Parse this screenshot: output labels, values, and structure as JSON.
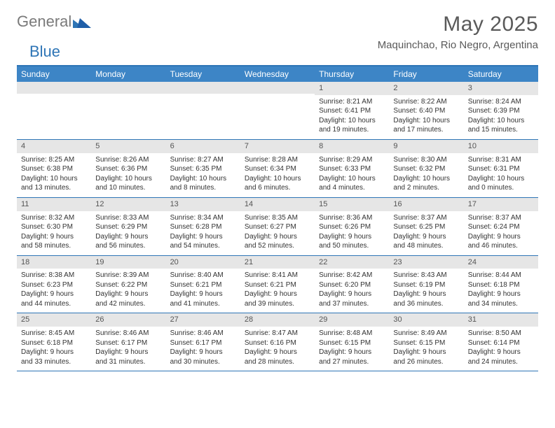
{
  "logo": {
    "text_gray": "General",
    "text_blue": "Blue"
  },
  "title": "May 2025",
  "location": "Maquinchao, Rio Negro, Argentina",
  "colors": {
    "header_bg": "#3d85c6",
    "border": "#2e75b6",
    "daynum_bg": "#e6e6e6",
    "text": "#333333",
    "title_text": "#5a5a5a"
  },
  "day_names": [
    "Sunday",
    "Monday",
    "Tuesday",
    "Wednesday",
    "Thursday",
    "Friday",
    "Saturday"
  ],
  "weeks": [
    [
      {
        "n": "",
        "sr": "",
        "ss": "",
        "dl": ""
      },
      {
        "n": "",
        "sr": "",
        "ss": "",
        "dl": ""
      },
      {
        "n": "",
        "sr": "",
        "ss": "",
        "dl": ""
      },
      {
        "n": "",
        "sr": "",
        "ss": "",
        "dl": ""
      },
      {
        "n": "1",
        "sr": "Sunrise: 8:21 AM",
        "ss": "Sunset: 6:41 PM",
        "dl": "Daylight: 10 hours and 19 minutes."
      },
      {
        "n": "2",
        "sr": "Sunrise: 8:22 AM",
        "ss": "Sunset: 6:40 PM",
        "dl": "Daylight: 10 hours and 17 minutes."
      },
      {
        "n": "3",
        "sr": "Sunrise: 8:24 AM",
        "ss": "Sunset: 6:39 PM",
        "dl": "Daylight: 10 hours and 15 minutes."
      }
    ],
    [
      {
        "n": "4",
        "sr": "Sunrise: 8:25 AM",
        "ss": "Sunset: 6:38 PM",
        "dl": "Daylight: 10 hours and 13 minutes."
      },
      {
        "n": "5",
        "sr": "Sunrise: 8:26 AM",
        "ss": "Sunset: 6:36 PM",
        "dl": "Daylight: 10 hours and 10 minutes."
      },
      {
        "n": "6",
        "sr": "Sunrise: 8:27 AM",
        "ss": "Sunset: 6:35 PM",
        "dl": "Daylight: 10 hours and 8 minutes."
      },
      {
        "n": "7",
        "sr": "Sunrise: 8:28 AM",
        "ss": "Sunset: 6:34 PM",
        "dl": "Daylight: 10 hours and 6 minutes."
      },
      {
        "n": "8",
        "sr": "Sunrise: 8:29 AM",
        "ss": "Sunset: 6:33 PM",
        "dl": "Daylight: 10 hours and 4 minutes."
      },
      {
        "n": "9",
        "sr": "Sunrise: 8:30 AM",
        "ss": "Sunset: 6:32 PM",
        "dl": "Daylight: 10 hours and 2 minutes."
      },
      {
        "n": "10",
        "sr": "Sunrise: 8:31 AM",
        "ss": "Sunset: 6:31 PM",
        "dl": "Daylight: 10 hours and 0 minutes."
      }
    ],
    [
      {
        "n": "11",
        "sr": "Sunrise: 8:32 AM",
        "ss": "Sunset: 6:30 PM",
        "dl": "Daylight: 9 hours and 58 minutes."
      },
      {
        "n": "12",
        "sr": "Sunrise: 8:33 AM",
        "ss": "Sunset: 6:29 PM",
        "dl": "Daylight: 9 hours and 56 minutes."
      },
      {
        "n": "13",
        "sr": "Sunrise: 8:34 AM",
        "ss": "Sunset: 6:28 PM",
        "dl": "Daylight: 9 hours and 54 minutes."
      },
      {
        "n": "14",
        "sr": "Sunrise: 8:35 AM",
        "ss": "Sunset: 6:27 PM",
        "dl": "Daylight: 9 hours and 52 minutes."
      },
      {
        "n": "15",
        "sr": "Sunrise: 8:36 AM",
        "ss": "Sunset: 6:26 PM",
        "dl": "Daylight: 9 hours and 50 minutes."
      },
      {
        "n": "16",
        "sr": "Sunrise: 8:37 AM",
        "ss": "Sunset: 6:25 PM",
        "dl": "Daylight: 9 hours and 48 minutes."
      },
      {
        "n": "17",
        "sr": "Sunrise: 8:37 AM",
        "ss": "Sunset: 6:24 PM",
        "dl": "Daylight: 9 hours and 46 minutes."
      }
    ],
    [
      {
        "n": "18",
        "sr": "Sunrise: 8:38 AM",
        "ss": "Sunset: 6:23 PM",
        "dl": "Daylight: 9 hours and 44 minutes."
      },
      {
        "n": "19",
        "sr": "Sunrise: 8:39 AM",
        "ss": "Sunset: 6:22 PM",
        "dl": "Daylight: 9 hours and 42 minutes."
      },
      {
        "n": "20",
        "sr": "Sunrise: 8:40 AM",
        "ss": "Sunset: 6:21 PM",
        "dl": "Daylight: 9 hours and 41 minutes."
      },
      {
        "n": "21",
        "sr": "Sunrise: 8:41 AM",
        "ss": "Sunset: 6:21 PM",
        "dl": "Daylight: 9 hours and 39 minutes."
      },
      {
        "n": "22",
        "sr": "Sunrise: 8:42 AM",
        "ss": "Sunset: 6:20 PM",
        "dl": "Daylight: 9 hours and 37 minutes."
      },
      {
        "n": "23",
        "sr": "Sunrise: 8:43 AM",
        "ss": "Sunset: 6:19 PM",
        "dl": "Daylight: 9 hours and 36 minutes."
      },
      {
        "n": "24",
        "sr": "Sunrise: 8:44 AM",
        "ss": "Sunset: 6:18 PM",
        "dl": "Daylight: 9 hours and 34 minutes."
      }
    ],
    [
      {
        "n": "25",
        "sr": "Sunrise: 8:45 AM",
        "ss": "Sunset: 6:18 PM",
        "dl": "Daylight: 9 hours and 33 minutes."
      },
      {
        "n": "26",
        "sr": "Sunrise: 8:46 AM",
        "ss": "Sunset: 6:17 PM",
        "dl": "Daylight: 9 hours and 31 minutes."
      },
      {
        "n": "27",
        "sr": "Sunrise: 8:46 AM",
        "ss": "Sunset: 6:17 PM",
        "dl": "Daylight: 9 hours and 30 minutes."
      },
      {
        "n": "28",
        "sr": "Sunrise: 8:47 AM",
        "ss": "Sunset: 6:16 PM",
        "dl": "Daylight: 9 hours and 28 minutes."
      },
      {
        "n": "29",
        "sr": "Sunrise: 8:48 AM",
        "ss": "Sunset: 6:15 PM",
        "dl": "Daylight: 9 hours and 27 minutes."
      },
      {
        "n": "30",
        "sr": "Sunrise: 8:49 AM",
        "ss": "Sunset: 6:15 PM",
        "dl": "Daylight: 9 hours and 26 minutes."
      },
      {
        "n": "31",
        "sr": "Sunrise: 8:50 AM",
        "ss": "Sunset: 6:14 PM",
        "dl": "Daylight: 9 hours and 24 minutes."
      }
    ]
  ]
}
